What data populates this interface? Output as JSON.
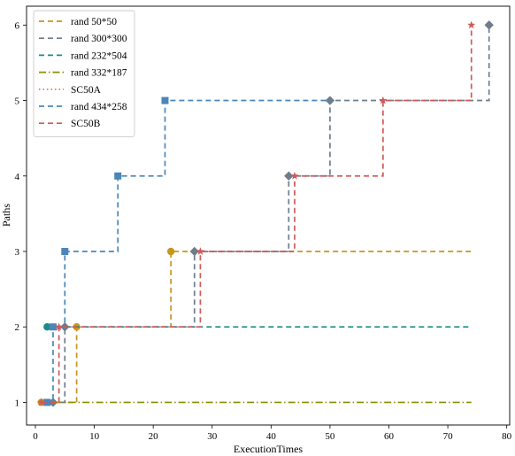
{
  "chart_data": {
    "type": "line",
    "title": "",
    "xlabel": "ExecutionTimes",
    "ylabel": "Paths",
    "xlim": [
      -1.5,
      80.5
    ],
    "ylim": [
      0.7,
      6.25
    ],
    "xticks": [
      0,
      10,
      20,
      30,
      40,
      50,
      60,
      70,
      80
    ],
    "yticks": [
      1,
      2,
      3,
      4,
      5,
      6
    ],
    "grid": false,
    "legend_position": "top-left",
    "series": [
      {
        "name": "rand 50*50",
        "color": "#c8951e",
        "linestyle": "dashed",
        "marker": "circle",
        "x": [
          1,
          7,
          23,
          74
        ],
        "y": [
          1,
          2,
          3,
          3
        ],
        "markers_x": [
          1,
          7,
          23
        ],
        "markers_y": [
          1,
          2,
          3
        ]
      },
      {
        "name": "rand 300*300",
        "color": "#6e7d8c",
        "linestyle": "dashed",
        "marker": "diamond",
        "x": [
          3,
          5,
          27,
          43,
          50,
          77
        ],
        "y": [
          1,
          2,
          3,
          4,
          5,
          6
        ],
        "markers_x": [
          3,
          5,
          27,
          43,
          50,
          77
        ],
        "markers_y": [
          1,
          2,
          3,
          4,
          5,
          6
        ]
      },
      {
        "name": "rand 232*504",
        "color": "#1f8a8a",
        "linestyle": "dashed",
        "marker": "circle",
        "x": [
          2,
          74
        ],
        "y": [
          2,
          2
        ],
        "markers_x": [
          2
        ],
        "markers_y": [
          2
        ]
      },
      {
        "name": "rand 332*187",
        "color": "#8c8c00",
        "linestyle": "dashdot",
        "marker": "none",
        "x": [
          1,
          74
        ],
        "y": [
          1,
          1
        ],
        "markers_x": [],
        "markers_y": []
      },
      {
        "name": "SC50A",
        "color": "#e07a40",
        "linestyle": "dotted",
        "marker": "none",
        "x": [
          1,
          4
        ],
        "y": [
          1,
          1
        ],
        "markers_x": [],
        "markers_y": []
      },
      {
        "name": "rand 434*258",
        "color": "#4a86b9",
        "linestyle": "dashed",
        "marker": "square",
        "x": [
          2,
          3,
          5,
          14,
          22,
          50
        ],
        "y": [
          1,
          2,
          3,
          4,
          5,
          5
        ],
        "markers_x": [
          2,
          3,
          5,
          14,
          22
        ],
        "markers_y": [
          1,
          2,
          3,
          4,
          5
        ]
      },
      {
        "name": "SC50B",
        "color": "#d05a5a",
        "linestyle": "dashed",
        "marker": "star",
        "x": [
          1,
          4,
          28,
          44,
          59,
          74
        ],
        "y": [
          1,
          2,
          3,
          4,
          5,
          6
        ],
        "markers_x": [
          1,
          4,
          28,
          44,
          59,
          74
        ],
        "markers_y": [
          1,
          2,
          3,
          4,
          5,
          6
        ]
      }
    ]
  }
}
